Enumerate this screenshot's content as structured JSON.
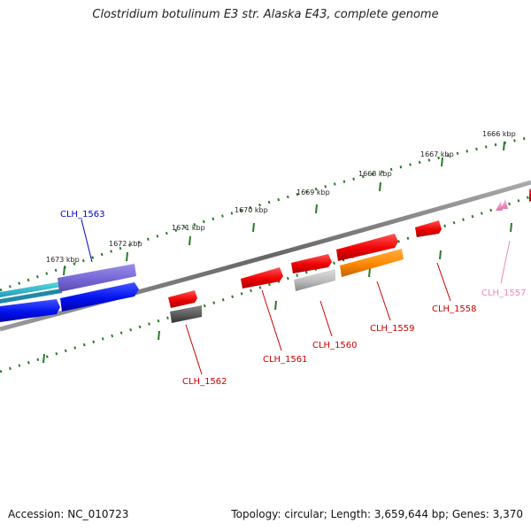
{
  "title": "Clostridium botulinum E3 str. Alaska E43, complete genome",
  "footer": {
    "accession": "Accession: NC_010723",
    "summary": "Topology: circular; Length: 3,659,644 bp; Genes: 3,370"
  },
  "ruler": {
    "ticks": [
      "1666 kbp",
      "1667 kbp",
      "1668 kbp",
      "1669 kbp",
      "1670 kbp",
      "1671 kbp",
      "1672 kbp",
      "1673 kbp"
    ]
  },
  "genes": [
    {
      "label": "CLH_1563",
      "color": "#0000cc"
    },
    {
      "label": "CLH_1562",
      "color": "#cc0000"
    },
    {
      "label": "CLH_1561",
      "color": "#cc0000"
    },
    {
      "label": "CLH_1560",
      "color": "#cc0000"
    },
    {
      "label": "CLH_1559",
      "color": "#cc0000"
    },
    {
      "label": "CLH_1558",
      "color": "#cc0000"
    },
    {
      "label": "CLH_1557",
      "color": "#ee88bb"
    }
  ]
}
